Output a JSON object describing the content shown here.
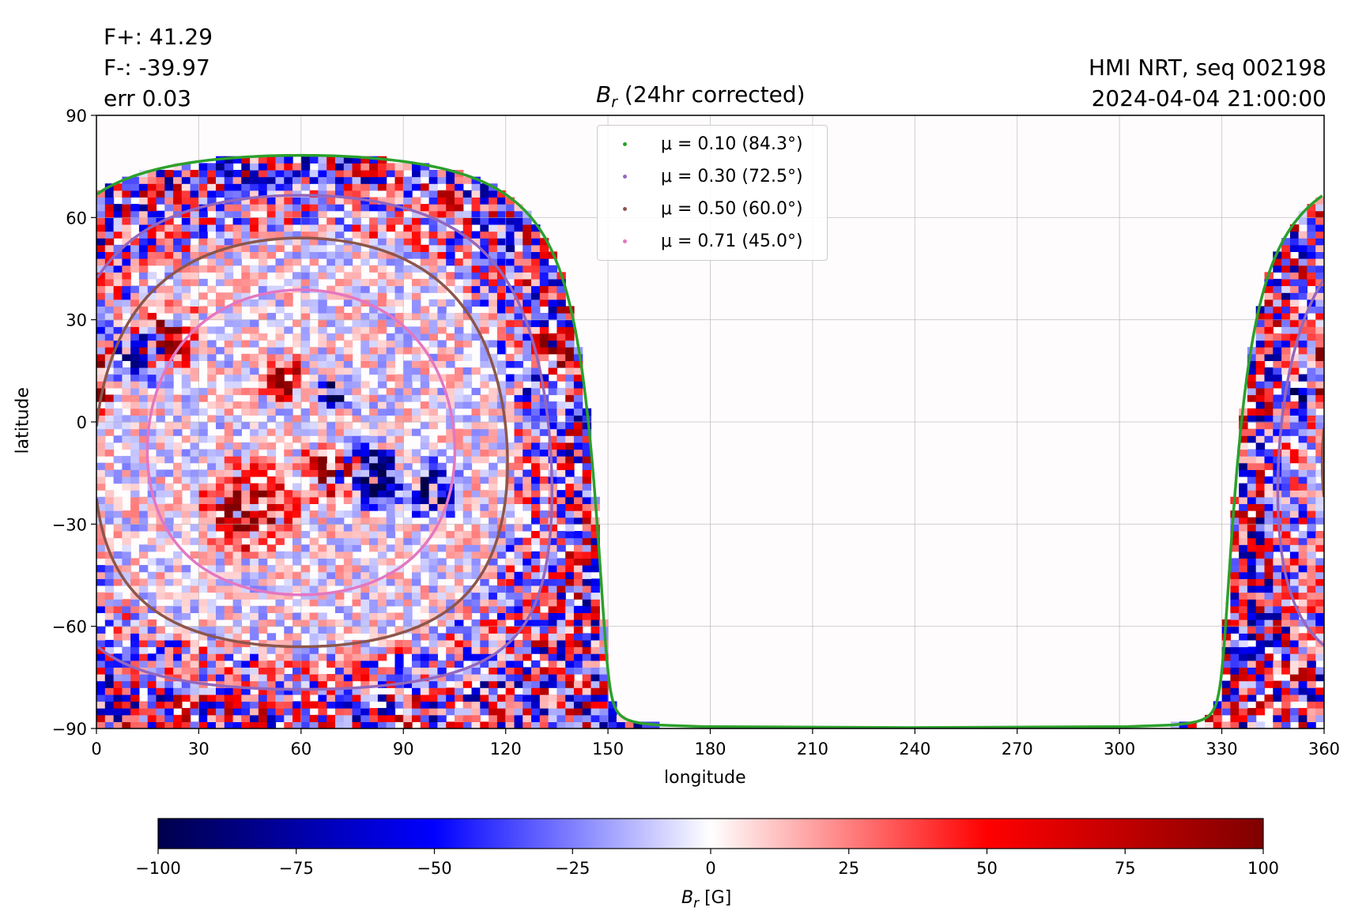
{
  "header": {
    "flux_pos": "F+: 41.29",
    "flux_neg": "F-: -39.97",
    "err": "err 0.03",
    "source": "HMI NRT, seq 002198",
    "datetime": "2024-04-04 21:00:00"
  },
  "chart_data": [
    {
      "type": "heatmap",
      "title_symbol": "B",
      "title_subscript": "r",
      "title_rest": " (24hr corrected)",
      "xlabel": "longitude",
      "ylabel": "latitude",
      "xlim": [
        0,
        360
      ],
      "ylim": [
        -90,
        90
      ],
      "xticks": [
        0,
        30,
        60,
        90,
        120,
        150,
        180,
        210,
        240,
        270,
        300,
        330,
        360
      ],
      "yticks": [
        90,
        60,
        30,
        0,
        -30,
        -60,
        -90
      ],
      "ytick_labels": [
        "90",
        "60",
        "30",
        "0",
        "−30",
        "−60",
        "−90"
      ],
      "grid": true,
      "legend_placement": "upper center",
      "colors": {
        "mu_0_10": "#2ca02c",
        "mu_0_30": "#9467bd",
        "mu_0_50": "#8c564b",
        "mu_0_71": "#e377c2"
      },
      "series": [
        {
          "name": "μ = 0.10 (84.3°)",
          "mu": 0.1,
          "angle_deg": 84.3,
          "color": "#2ca02c"
        },
        {
          "name": "μ = 0.30 (72.5°)",
          "mu": 0.3,
          "angle_deg": 72.5,
          "color": "#9467bd"
        },
        {
          "name": "μ = 0.50 (60.0°)",
          "mu": 0.5,
          "angle_deg": 60.0,
          "color": "#8c564b"
        },
        {
          "name": "μ = 0.71 (45.0°)",
          "mu": 0.71,
          "angle_deg": 45.0,
          "color": "#e377c2"
        }
      ],
      "disk_center_lon": 60,
      "disk_center_lat": -6,
      "notes": "Bipolar active regions near (20,25),(55,12),(45,-25),(65,-18),(85,-15)"
    },
    {
      "type": "colorbar",
      "label_symbol": "B",
      "label_subscript": "r",
      "label_rest": " [G]",
      "range": [
        -100,
        100
      ],
      "ticks": [
        -100,
        -75,
        -50,
        -25,
        0,
        25,
        50,
        75,
        100
      ],
      "tick_labels": [
        "−100",
        "−75",
        "−50",
        "−25",
        "0",
        "25",
        "50",
        "75",
        "100"
      ],
      "colormap": "seismic"
    }
  ]
}
